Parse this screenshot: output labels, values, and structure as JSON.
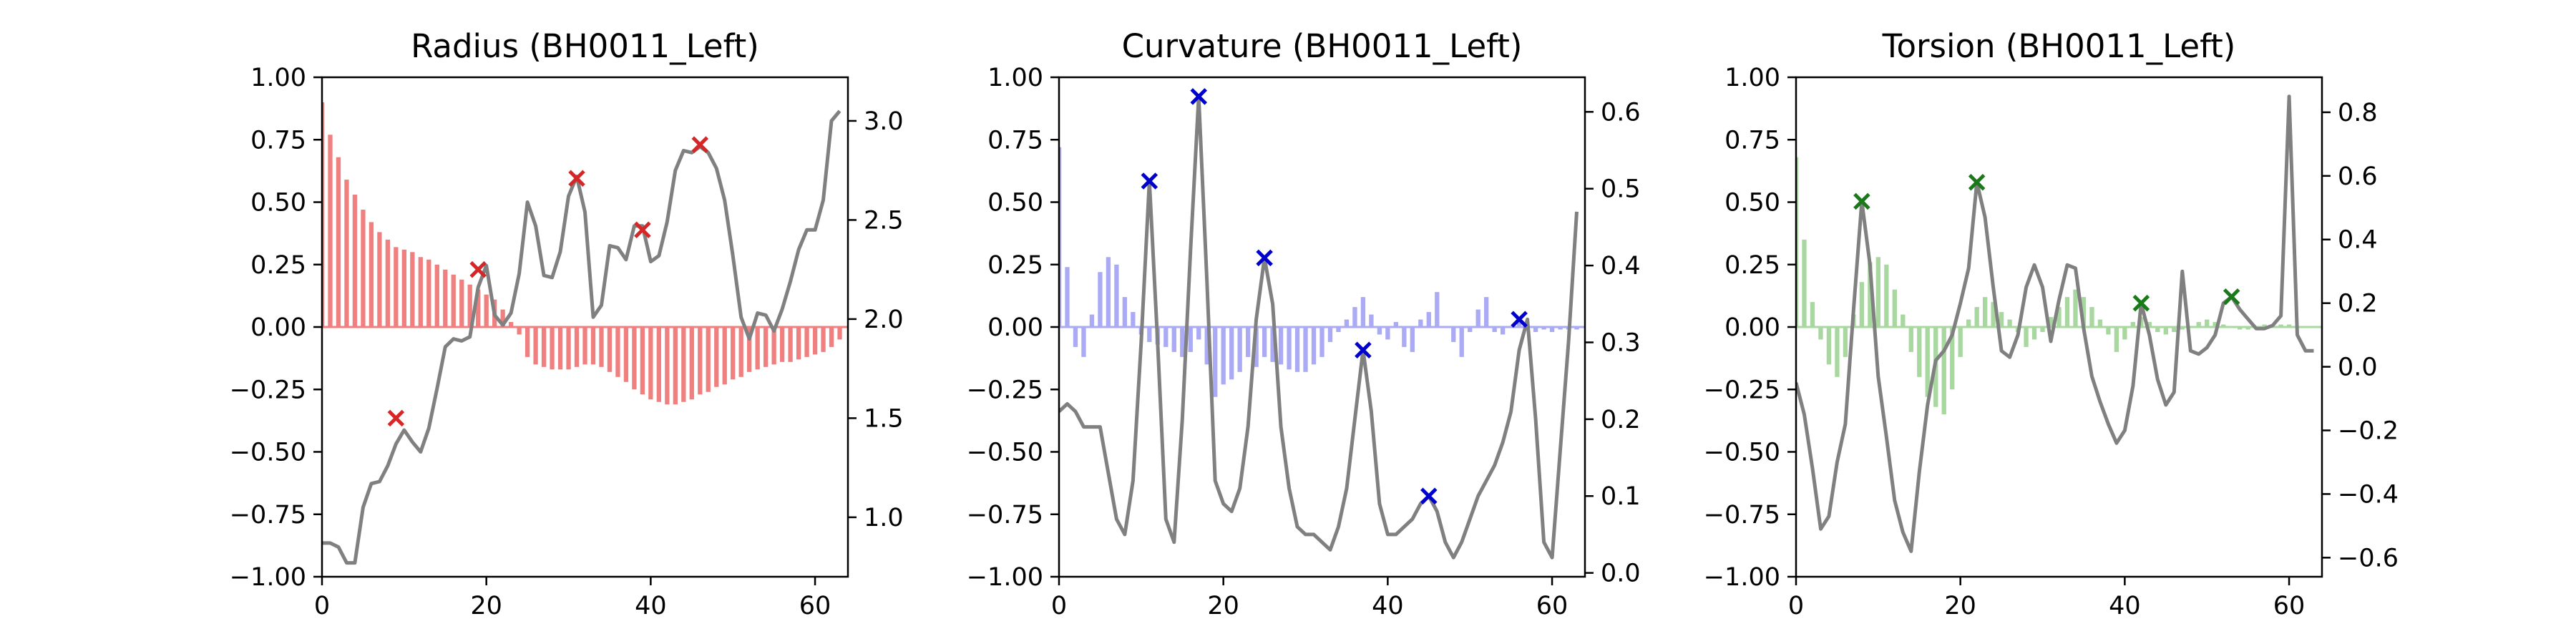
{
  "chart_data": [
    {
      "type": "bar",
      "title": "Radius (BH0011_Left)",
      "color": "#f08080",
      "line_color": "#808080",
      "marker_color": "#d62728",
      "xlim": [
        0,
        64
      ],
      "ylim": [
        -1.0,
        1.0
      ],
      "y2lim": [
        0.7,
        3.22
      ],
      "x_ticks": [
        0,
        20,
        40,
        60
      ],
      "y_ticks": [
        -1.0,
        -0.75,
        -0.5,
        -0.25,
        0.0,
        0.25,
        0.5,
        0.75,
        1.0
      ],
      "y_tick_labels": [
        "−1.00",
        "−0.75",
        "−0.50",
        "−0.25",
        "0.00",
        "0.25",
        "0.50",
        "0.75",
        "1.00"
      ],
      "y2_ticks": [
        1.0,
        1.5,
        2.0,
        2.5,
        3.0
      ],
      "y2_tick_labels": [
        "1.0",
        "1.5",
        "2.0",
        "2.5",
        "3.0"
      ],
      "bars": [
        0.9,
        0.77,
        0.68,
        0.59,
        0.53,
        0.47,
        0.42,
        0.38,
        0.35,
        0.32,
        0.31,
        0.3,
        0.28,
        0.27,
        0.25,
        0.23,
        0.21,
        0.19,
        0.17,
        0.15,
        0.13,
        0.11,
        0.07,
        0.02,
        -0.03,
        -0.12,
        -0.15,
        -0.16,
        -0.17,
        -0.17,
        -0.17,
        -0.16,
        -0.15,
        -0.15,
        -0.16,
        -0.18,
        -0.2,
        -0.22,
        -0.25,
        -0.27,
        -0.29,
        -0.3,
        -0.31,
        -0.31,
        -0.3,
        -0.29,
        -0.27,
        -0.26,
        -0.24,
        -0.23,
        -0.21,
        -0.2,
        -0.18,
        -0.17,
        -0.16,
        -0.15,
        -0.14,
        -0.14,
        -0.13,
        -0.12,
        -0.11,
        -0.1,
        -0.08,
        -0.05
      ],
      "line": [
        0.87,
        0.87,
        0.85,
        0.77,
        0.77,
        1.05,
        1.17,
        1.18,
        1.26,
        1.37,
        1.44,
        1.38,
        1.33,
        1.45,
        1.65,
        1.86,
        1.9,
        1.89,
        1.91,
        2.16,
        2.27,
        2.02,
        1.97,
        2.03,
        2.23,
        2.59,
        2.47,
        2.22,
        2.21,
        2.34,
        2.62,
        2.72,
        2.54,
        2.01,
        2.07,
        2.37,
        2.36,
        2.3,
        2.47,
        2.47,
        2.29,
        2.32,
        2.49,
        2.75,
        2.85,
        2.84,
        2.87,
        2.84,
        2.76,
        2.6,
        2.32,
        2.01,
        1.9,
        2.03,
        2.02,
        1.94,
        2.05,
        2.19,
        2.35,
        2.45,
        2.45,
        2.6,
        3.0,
        3.05
      ],
      "markers": [
        [
          9,
          1.5
        ],
        [
          19,
          2.25
        ],
        [
          31,
          2.71
        ],
        [
          39,
          2.45
        ],
        [
          46,
          2.88
        ]
      ]
    },
    {
      "type": "bar",
      "title": "Curvature (BH0011_Left)",
      "color": "#aaaaf5",
      "line_color": "#808080",
      "marker_color": "#0000cd",
      "xlim": [
        0,
        64
      ],
      "ylim": [
        -1.0,
        1.0
      ],
      "y2lim": [
        -0.005,
        0.645
      ],
      "x_ticks": [
        0,
        20,
        40,
        60
      ],
      "y_ticks": [
        -1.0,
        -0.75,
        -0.5,
        -0.25,
        0.0,
        0.25,
        0.5,
        0.75,
        1.0
      ],
      "y_tick_labels": [
        "−1.00",
        "−0.75",
        "−0.50",
        "−0.25",
        "0.00",
        "0.25",
        "0.50",
        "0.75",
        "1.00"
      ],
      "y2_ticks": [
        0.0,
        0.1,
        0.2,
        0.3,
        0.4,
        0.5,
        0.6
      ],
      "y2_tick_labels": [
        "0.0",
        "0.1",
        "0.2",
        "0.3",
        "0.4",
        "0.5",
        "0.6"
      ],
      "bars": [
        0.72,
        0.24,
        -0.08,
        -0.12,
        0.05,
        0.22,
        0.28,
        0.25,
        0.12,
        0.06,
        -0.03,
        -0.06,
        -0.07,
        -0.08,
        -0.1,
        -0.12,
        -0.1,
        -0.05,
        -0.15,
        -0.28,
        -0.23,
        -0.21,
        -0.18,
        -0.12,
        -0.16,
        -0.12,
        -0.14,
        -0.15,
        -0.17,
        -0.18,
        -0.18,
        -0.15,
        -0.12,
        -0.06,
        -0.02,
        0.03,
        0.08,
        0.12,
        0.05,
        -0.03,
        -0.05,
        0.02,
        -0.08,
        -0.1,
        0.03,
        0.06,
        0.14,
        0.0,
        -0.06,
        -0.12,
        -0.02,
        0.07,
        0.12,
        -0.02,
        -0.03,
        0.0,
        0.02,
        -0.01,
        -0.02,
        -0.01,
        -0.02,
        -0.01,
        -0.01,
        -0.01
      ],
      "line": [
        0.21,
        0.22,
        0.21,
        0.19,
        0.19,
        0.19,
        0.13,
        0.07,
        0.05,
        0.12,
        0.3,
        0.51,
        0.3,
        0.07,
        0.04,
        0.2,
        0.42,
        0.62,
        0.38,
        0.12,
        0.09,
        0.08,
        0.11,
        0.19,
        0.33,
        0.41,
        0.35,
        0.19,
        0.11,
        0.06,
        0.05,
        0.05,
        0.04,
        0.03,
        0.06,
        0.11,
        0.2,
        0.29,
        0.21,
        0.09,
        0.05,
        0.05,
        0.06,
        0.07,
        0.09,
        0.1,
        0.08,
        0.04,
        0.02,
        0.04,
        0.07,
        0.1,
        0.12,
        0.14,
        0.17,
        0.21,
        0.29,
        0.33,
        0.2,
        0.04,
        0.02,
        0.16,
        0.3,
        0.47
      ],
      "markers": [
        [
          11,
          0.51
        ],
        [
          17,
          0.62
        ],
        [
          25,
          0.41
        ],
        [
          37,
          0.29
        ],
        [
          45,
          0.1
        ],
        [
          56,
          0.33
        ]
      ]
    },
    {
      "type": "bar",
      "title": "Torsion (BH0011_Left)",
      "color": "#a8d8a0",
      "line_color": "#808080",
      "marker_color": "#1a7a1a",
      "xlim": [
        0,
        64
      ],
      "ylim": [
        -1.0,
        1.0
      ],
      "y2lim": [
        -0.66,
        0.91
      ],
      "x_ticks": [
        0,
        20,
        40,
        60
      ],
      "y_ticks": [
        -1.0,
        -0.75,
        -0.5,
        -0.25,
        0.0,
        0.25,
        0.5,
        0.75,
        1.0
      ],
      "y_tick_labels": [
        "−1.00",
        "−0.75",
        "−0.50",
        "−0.25",
        "0.00",
        "0.25",
        "0.50",
        "0.75",
        "1.00"
      ],
      "y2_ticks": [
        -0.6,
        -0.4,
        -0.2,
        0.0,
        0.2,
        0.4,
        0.6,
        0.8
      ],
      "y2_tick_labels": [
        "−0.6",
        "−0.4",
        "−0.2",
        "0.0",
        "0.2",
        "0.4",
        "0.6",
        "0.8"
      ],
      "bars": [
        0.68,
        0.35,
        0.1,
        -0.05,
        -0.15,
        -0.2,
        -0.12,
        0.05,
        0.18,
        0.26,
        0.28,
        0.25,
        0.15,
        0.05,
        -0.1,
        -0.2,
        -0.28,
        -0.32,
        -0.35,
        -0.25,
        -0.12,
        0.03,
        0.08,
        0.12,
        0.1,
        0.06,
        0.03,
        -0.02,
        -0.08,
        -0.05,
        -0.02,
        0.04,
        0.08,
        0.12,
        0.15,
        0.12,
        0.08,
        0.03,
        -0.03,
        -0.1,
        -0.05,
        0.02,
        0.04,
        0.02,
        -0.02,
        -0.03,
        -0.02,
        -0.01,
        0.0,
        0.02,
        0.03,
        0.02,
        0.01,
        0.0,
        -0.01,
        -0.01,
        0.0,
        0.01,
        0.01,
        0.01,
        0.01,
        0.0,
        0.0,
        0.0
      ],
      "line": [
        -0.05,
        -0.15,
        -0.32,
        -0.51,
        -0.47,
        -0.3,
        -0.18,
        0.18,
        0.52,
        0.32,
        -0.03,
        -0.22,
        -0.42,
        -0.52,
        -0.58,
        -0.33,
        -0.12,
        0.02,
        0.05,
        0.1,
        0.2,
        0.31,
        0.58,
        0.47,
        0.25,
        0.05,
        0.03,
        0.1,
        0.25,
        0.32,
        0.25,
        0.08,
        0.21,
        0.32,
        0.31,
        0.12,
        -0.03,
        -0.11,
        -0.18,
        -0.24,
        -0.2,
        -0.06,
        0.2,
        0.1,
        -0.04,
        -0.12,
        -0.08,
        0.3,
        0.05,
        0.04,
        0.06,
        0.1,
        0.2,
        0.22,
        0.18,
        0.15,
        0.12,
        0.12,
        0.13,
        0.16,
        0.85,
        0.1,
        0.05,
        0.05
      ],
      "markers": [
        [
          8,
          0.52
        ],
        [
          22,
          0.58
        ],
        [
          42,
          0.2
        ],
        [
          53,
          0.22
        ]
      ]
    }
  ]
}
